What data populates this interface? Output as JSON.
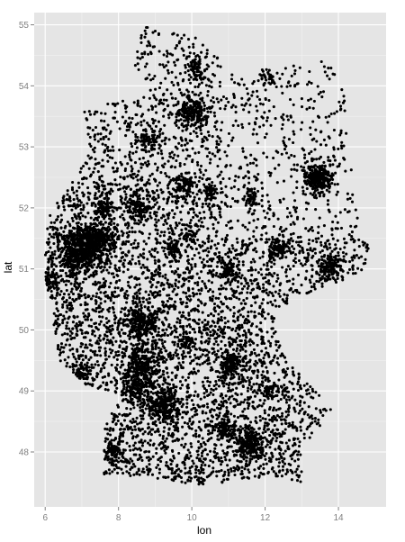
{
  "chart_data": {
    "type": "scatter",
    "title": "",
    "xlabel": "lon",
    "ylabel": "lat",
    "xlim": [
      5.7,
      15.3
    ],
    "ylim": [
      47.1,
      55.2
    ],
    "xticks": [
      6,
      8,
      10,
      12,
      14
    ],
    "yticks": [
      48,
      49,
      50,
      51,
      52,
      53,
      54,
      55
    ],
    "x_tick_labels": [
      "6",
      "8",
      "10",
      "12",
      "14"
    ],
    "y_tick_labels": [
      "48",
      "49",
      "50",
      "51",
      "52",
      "53",
      "54",
      "55"
    ],
    "grid": true,
    "panel_color": "#e5e5e5",
    "grid_color": "#ffffff",
    "point_color": "#000000",
    "clusters": [
      {
        "x": 6.95,
        "y": 51.3,
        "sx": 0.3,
        "sy": 0.18,
        "n": 520
      },
      {
        "x": 7.4,
        "y": 51.45,
        "sx": 0.35,
        "sy": 0.12,
        "n": 280
      },
      {
        "x": 10.0,
        "y": 53.55,
        "sx": 0.22,
        "sy": 0.14,
        "n": 220
      },
      {
        "x": 13.4,
        "y": 52.5,
        "sx": 0.2,
        "sy": 0.11,
        "n": 260
      },
      {
        "x": 11.55,
        "y": 48.15,
        "sx": 0.22,
        "sy": 0.13,
        "n": 220
      },
      {
        "x": 8.6,
        "y": 50.1,
        "sx": 0.25,
        "sy": 0.14,
        "n": 220
      },
      {
        "x": 9.2,
        "y": 48.75,
        "sx": 0.22,
        "sy": 0.14,
        "n": 240
      },
      {
        "x": 8.6,
        "y": 49.4,
        "sx": 0.25,
        "sy": 0.2,
        "n": 240
      },
      {
        "x": 12.35,
        "y": 51.35,
        "sx": 0.16,
        "sy": 0.1,
        "n": 110
      },
      {
        "x": 13.75,
        "y": 51.05,
        "sx": 0.16,
        "sy": 0.1,
        "n": 110
      },
      {
        "x": 11.05,
        "y": 49.45,
        "sx": 0.18,
        "sy": 0.12,
        "n": 130
      },
      {
        "x": 9.75,
        "y": 52.38,
        "sx": 0.15,
        "sy": 0.09,
        "n": 90
      },
      {
        "x": 8.8,
        "y": 53.1,
        "sx": 0.15,
        "sy": 0.09,
        "n": 70
      },
      {
        "x": 7.85,
        "y": 47.99,
        "sx": 0.12,
        "sy": 0.1,
        "n": 80
      },
      {
        "x": 10.9,
        "y": 48.37,
        "sx": 0.14,
        "sy": 0.09,
        "n": 70
      },
      {
        "x": 7.6,
        "y": 51.95,
        "sx": 0.14,
        "sy": 0.09,
        "n": 70
      },
      {
        "x": 8.55,
        "y": 52.0,
        "sx": 0.15,
        "sy": 0.1,
        "n": 80
      },
      {
        "x": 6.1,
        "y": 50.78,
        "sx": 0.14,
        "sy": 0.1,
        "n": 80
      },
      {
        "x": 12.1,
        "y": 49.0,
        "sx": 0.14,
        "sy": 0.09,
        "n": 60
      },
      {
        "x": 9.9,
        "y": 49.8,
        "sx": 0.14,
        "sy": 0.09,
        "n": 60
      },
      {
        "x": 10.15,
        "y": 54.3,
        "sx": 0.15,
        "sy": 0.12,
        "n": 70
      },
      {
        "x": 11.0,
        "y": 50.98,
        "sx": 0.16,
        "sy": 0.1,
        "n": 80
      },
      {
        "x": 8.5,
        "y": 49.0,
        "sx": 0.18,
        "sy": 0.14,
        "n": 110
      },
      {
        "x": 7.0,
        "y": 49.3,
        "sx": 0.16,
        "sy": 0.1,
        "n": 70
      },
      {
        "x": 9.5,
        "y": 51.3,
        "sx": 0.12,
        "sy": 0.08,
        "n": 50
      },
      {
        "x": 10.5,
        "y": 52.27,
        "sx": 0.12,
        "sy": 0.08,
        "n": 50
      },
      {
        "x": 11.6,
        "y": 52.13,
        "sx": 0.12,
        "sy": 0.08,
        "n": 50
      },
      {
        "x": 12.1,
        "y": 54.1,
        "sx": 0.1,
        "sy": 0.07,
        "n": 30
      },
      {
        "x": 9.95,
        "y": 51.55,
        "sx": 0.1,
        "sy": 0.07,
        "n": 40
      }
    ]
  }
}
